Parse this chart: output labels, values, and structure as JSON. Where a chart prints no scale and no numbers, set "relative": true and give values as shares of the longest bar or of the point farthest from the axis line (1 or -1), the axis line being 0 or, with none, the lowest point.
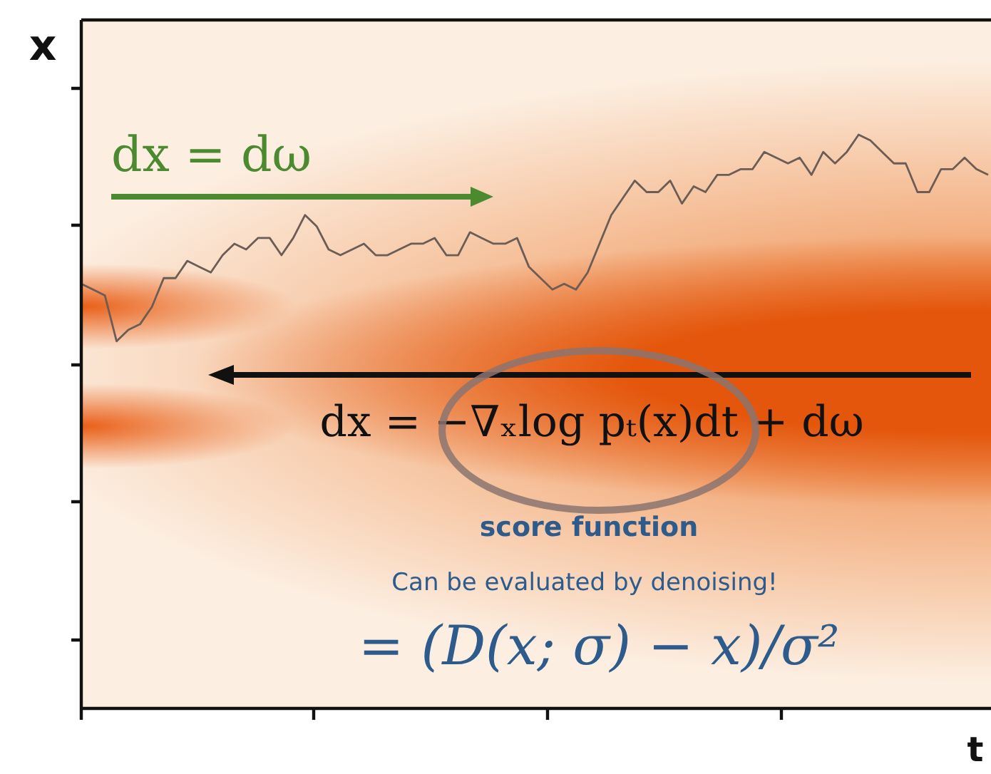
{
  "chart_data": {
    "type": "line",
    "relative": true,
    "ylabel": "x",
    "xlabel": "t",
    "annotations": [
      "dx = dω",
      "dx = −∇ₓlog pₜ(x)dt + dω",
      "score function",
      "Can be evaluated by denoising!",
      "= (D(x; σ) − x)/σ²"
    ],
    "categories": [
      null,
      null,
      null,
      null,
      null,
      null,
      null,
      null,
      null,
      null,
      null,
      null,
      null,
      null,
      null,
      null,
      null,
      null,
      null,
      null,
      null,
      null,
      null,
      null,
      null,
      null,
      null,
      null,
      null,
      null,
      null,
      null,
      null,
      null,
      null,
      null,
      null,
      null,
      null,
      null,
      null,
      null,
      null,
      null,
      null,
      null,
      null,
      null,
      null,
      null,
      null,
      null,
      null,
      null,
      null,
      null,
      null,
      null,
      null,
      null,
      null,
      null,
      null,
      null,
      null,
      null,
      null,
      null,
      null,
      null,
      null,
      null,
      null,
      null,
      null,
      null,
      null,
      null
    ],
    "series": [
      {
        "color": "#6b5d55",
        "values": [
          0.74,
          0.73,
          0.72,
          0.64,
          0.66,
          0.67,
          0.7,
          0.75,
          0.75,
          0.78,
          0.77,
          0.76,
          0.79,
          0.81,
          0.8,
          0.82,
          0.82,
          0.79,
          0.82,
          0.86,
          0.84,
          0.8,
          0.79,
          0.8,
          0.81,
          0.79,
          0.79,
          0.8,
          0.81,
          0.81,
          0.82,
          0.79,
          0.79,
          0.83,
          0.82,
          0.81,
          0.81,
          0.82,
          0.77,
          0.75,
          0.73,
          0.74,
          0.73,
          0.76,
          0.81,
          0.86,
          0.89,
          0.92,
          0.9,
          0.9,
          0.92,
          0.88,
          0.91,
          0.9,
          0.93,
          0.93,
          0.94,
          0.94,
          0.97,
          0.96,
          0.95,
          0.96,
          0.93,
          0.97,
          0.95,
          0.97,
          1,
          0.99,
          0.97,
          0.95,
          0.95,
          0.9,
          0.9,
          0.94,
          0.94,
          0.96,
          0.94,
          0.93
        ]
      }
    ]
  }
}
